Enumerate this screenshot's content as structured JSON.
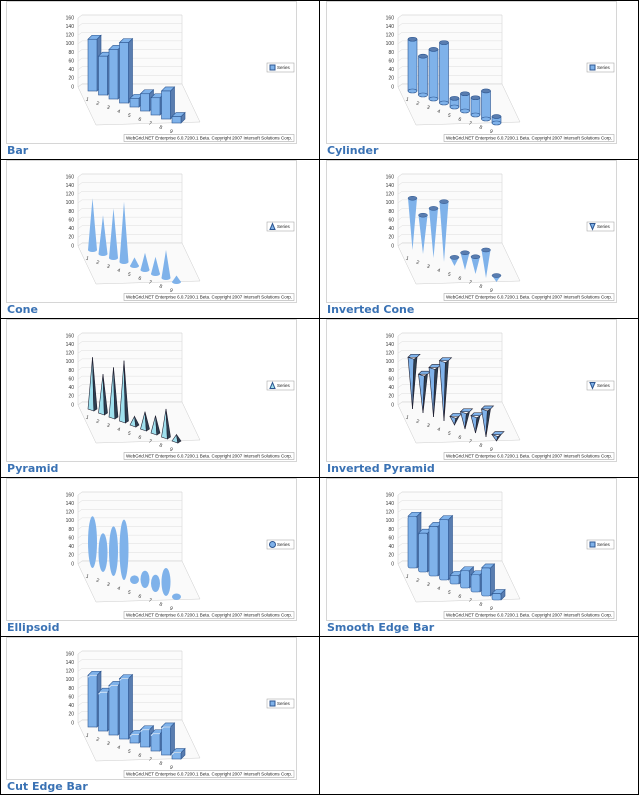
{
  "chart_data": [
    {
      "type": "bar",
      "title": "Bar",
      "categories": [
        "1",
        "2",
        "3",
        "4",
        "5",
        "6",
        "7",
        "8",
        "9"
      ],
      "series": [
        {
          "name": "Series",
          "color": "#7fb2ea",
          "values": [
            120,
            90,
            115,
            140,
            20,
            40,
            40,
            65,
            15
          ]
        }
      ],
      "ylim": [
        0,
        160
      ],
      "yticks": [
        0,
        20,
        40,
        60,
        80,
        100,
        120,
        140,
        160
      ],
      "grid": true,
      "credit": "WebGrid.NET Enterprise 6.0.7200.1 Beta. Copyright 2007 Intersoft Solutions Corp."
    },
    {
      "type": "cylinder",
      "title": "Cylinder",
      "categories": [
        "1",
        "2",
        "3",
        "4",
        "5",
        "6",
        "7",
        "8",
        "9"
      ],
      "series": [
        {
          "name": "Series",
          "color": "#7fb2ea",
          "values": [
            120,
            90,
            115,
            140,
            20,
            40,
            40,
            65,
            15
          ]
        }
      ],
      "ylim": [
        0,
        160
      ],
      "yticks": [
        0,
        20,
        40,
        60,
        80,
        100,
        120,
        140,
        160
      ],
      "grid": true,
      "credit": "WebGrid.NET Enterprise 6.0.7200.1 Beta. Copyright 2007 Intersoft Solutions Corp."
    },
    {
      "type": "cone",
      "title": "Cone",
      "categories": [
        "1",
        "2",
        "3",
        "4",
        "5",
        "6",
        "7",
        "8",
        "9"
      ],
      "series": [
        {
          "name": "Series",
          "color": "#7fb2ea",
          "values": [
            120,
            90,
            115,
            140,
            20,
            40,
            40,
            65,
            15
          ]
        }
      ],
      "ylim": [
        0,
        160
      ],
      "yticks": [
        0,
        20,
        40,
        60,
        80,
        100,
        120,
        140,
        160
      ],
      "grid": true,
      "credit": "WebGrid.NET Enterprise 6.0.7200.1 Beta. Copyright 2007 Intersoft Solutions Corp."
    },
    {
      "type": "inverted-cone",
      "title": "Inverted Cone",
      "categories": [
        "1",
        "2",
        "3",
        "4",
        "5",
        "6",
        "7",
        "8",
        "9"
      ],
      "series": [
        {
          "name": "Series",
          "color": "#7fb2ea",
          "values": [
            120,
            90,
            115,
            140,
            20,
            40,
            40,
            65,
            15
          ]
        }
      ],
      "ylim": [
        0,
        160
      ],
      "yticks": [
        0,
        20,
        40,
        60,
        80,
        100,
        120,
        140,
        160
      ],
      "grid": true,
      "credit": "WebGrid.NET Enterprise 6.0.7200.1 Beta. Copyright 2007 Intersoft Solutions Corp."
    },
    {
      "type": "pyramid",
      "title": "Pyramid",
      "categories": [
        "1",
        "2",
        "3",
        "4",
        "5",
        "6",
        "7",
        "8",
        "9"
      ],
      "series": [
        {
          "name": "Series",
          "color": "#9fe0ee",
          "values": [
            120,
            90,
            115,
            140,
            20,
            40,
            40,
            65,
            15
          ]
        }
      ],
      "ylim": [
        0,
        160
      ],
      "yticks": [
        0,
        20,
        40,
        60,
        80,
        100,
        120,
        140,
        160
      ],
      "grid": true,
      "credit": "WebGrid.NET Enterprise 6.0.7200.1 Beta. Copyright 2007 Intersoft Solutions Corp."
    },
    {
      "type": "inverted-pyramid",
      "title": "Inverted Pyramid",
      "categories": [
        "1",
        "2",
        "3",
        "4",
        "5",
        "6",
        "7",
        "8",
        "9"
      ],
      "series": [
        {
          "name": "Series",
          "color": "#7fb2ea",
          "values": [
            120,
            90,
            115,
            140,
            20,
            40,
            40,
            65,
            15
          ]
        }
      ],
      "ylim": [
        0,
        160
      ],
      "yticks": [
        0,
        20,
        40,
        60,
        80,
        100,
        120,
        140,
        160
      ],
      "grid": true,
      "credit": "WebGrid.NET Enterprise 6.0.7200.1 Beta. Copyright 2007 Intersoft Solutions Corp."
    },
    {
      "type": "ellipsoid",
      "title": "Ellipsoid",
      "categories": [
        "1",
        "2",
        "3",
        "4",
        "5",
        "6",
        "7",
        "8",
        "9"
      ],
      "series": [
        {
          "name": "Series",
          "color": "#7fb2ea",
          "values": [
            120,
            90,
            115,
            140,
            20,
            40,
            40,
            65,
            15
          ]
        }
      ],
      "ylim": [
        0,
        160
      ],
      "yticks": [
        0,
        20,
        40,
        60,
        80,
        100,
        120,
        140,
        160
      ],
      "grid": true,
      "credit": "WebGrid.NET Enterprise 6.0.7200.1 Beta. Copyright 2007 Intersoft Solutions Corp."
    },
    {
      "type": "smooth-edge-bar",
      "title": "Smooth Edge Bar",
      "categories": [
        "1",
        "2",
        "3",
        "4",
        "5",
        "6",
        "7",
        "8",
        "9"
      ],
      "series": [
        {
          "name": "Series",
          "color": "#7fb2ea",
          "values": [
            120,
            90,
            115,
            140,
            20,
            40,
            40,
            65,
            15
          ]
        }
      ],
      "ylim": [
        0,
        160
      ],
      "yticks": [
        0,
        20,
        40,
        60,
        80,
        100,
        120,
        140,
        160
      ],
      "grid": true,
      "credit": "WebGrid.NET Enterprise 6.0.7200.1 Beta. Copyright 2007 Intersoft Solutions Corp."
    },
    {
      "type": "cut-edge-bar",
      "title": "Cut Edge Bar",
      "categories": [
        "1",
        "2",
        "3",
        "4",
        "5",
        "6",
        "7",
        "8",
        "9"
      ],
      "series": [
        {
          "name": "Series",
          "color": "#7fb2ea",
          "values": [
            120,
            90,
            115,
            140,
            20,
            40,
            40,
            65,
            15
          ]
        }
      ],
      "ylim": [
        0,
        160
      ],
      "yticks": [
        0,
        20,
        40,
        60,
        80,
        100,
        120,
        140,
        160
      ],
      "grid": true,
      "credit": "WebGrid.NET Enterprise 6.0.7200.1 Beta. Copyright 2007 Intersoft Solutions Corp."
    }
  ]
}
